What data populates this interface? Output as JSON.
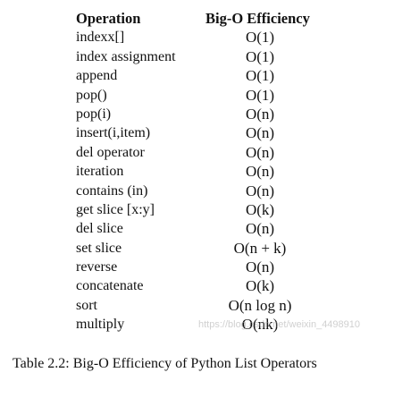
{
  "header": {
    "operation": "Operation",
    "efficiency": "Big-O Efficiency"
  },
  "rows": [
    {
      "operation": "indexx[]",
      "efficiency": "O(1)"
    },
    {
      "operation": "index assignment",
      "efficiency": "O(1)"
    },
    {
      "operation": "append",
      "efficiency": "O(1)"
    },
    {
      "operation": "pop()",
      "efficiency": "O(1)"
    },
    {
      "operation": "pop(i)",
      "efficiency": "O(n)"
    },
    {
      "operation": "insert(i,item)",
      "efficiency": "O(n)"
    },
    {
      "operation": "del operator",
      "efficiency": "O(n)"
    },
    {
      "operation": "iteration",
      "efficiency": "O(n)"
    },
    {
      "operation": "contains (in)",
      "efficiency": "O(n)"
    },
    {
      "operation": "get slice [x:y]",
      "efficiency": "O(k)"
    },
    {
      "operation": "del slice",
      "efficiency": "O(n)"
    },
    {
      "operation": "set slice",
      "efficiency": "O(n + k)"
    },
    {
      "operation": "reverse",
      "efficiency": "O(n)"
    },
    {
      "operation": "concatenate",
      "efficiency": "O(k)"
    },
    {
      "operation": "sort",
      "efficiency": "O(n log n)"
    },
    {
      "operation": "multiply",
      "efficiency": "O(nk)"
    }
  ],
  "caption": "Table 2.2: Big-O Efficiency of Python List Operators",
  "watermark": "https://blog.csdn.net/weixin_4498910"
}
